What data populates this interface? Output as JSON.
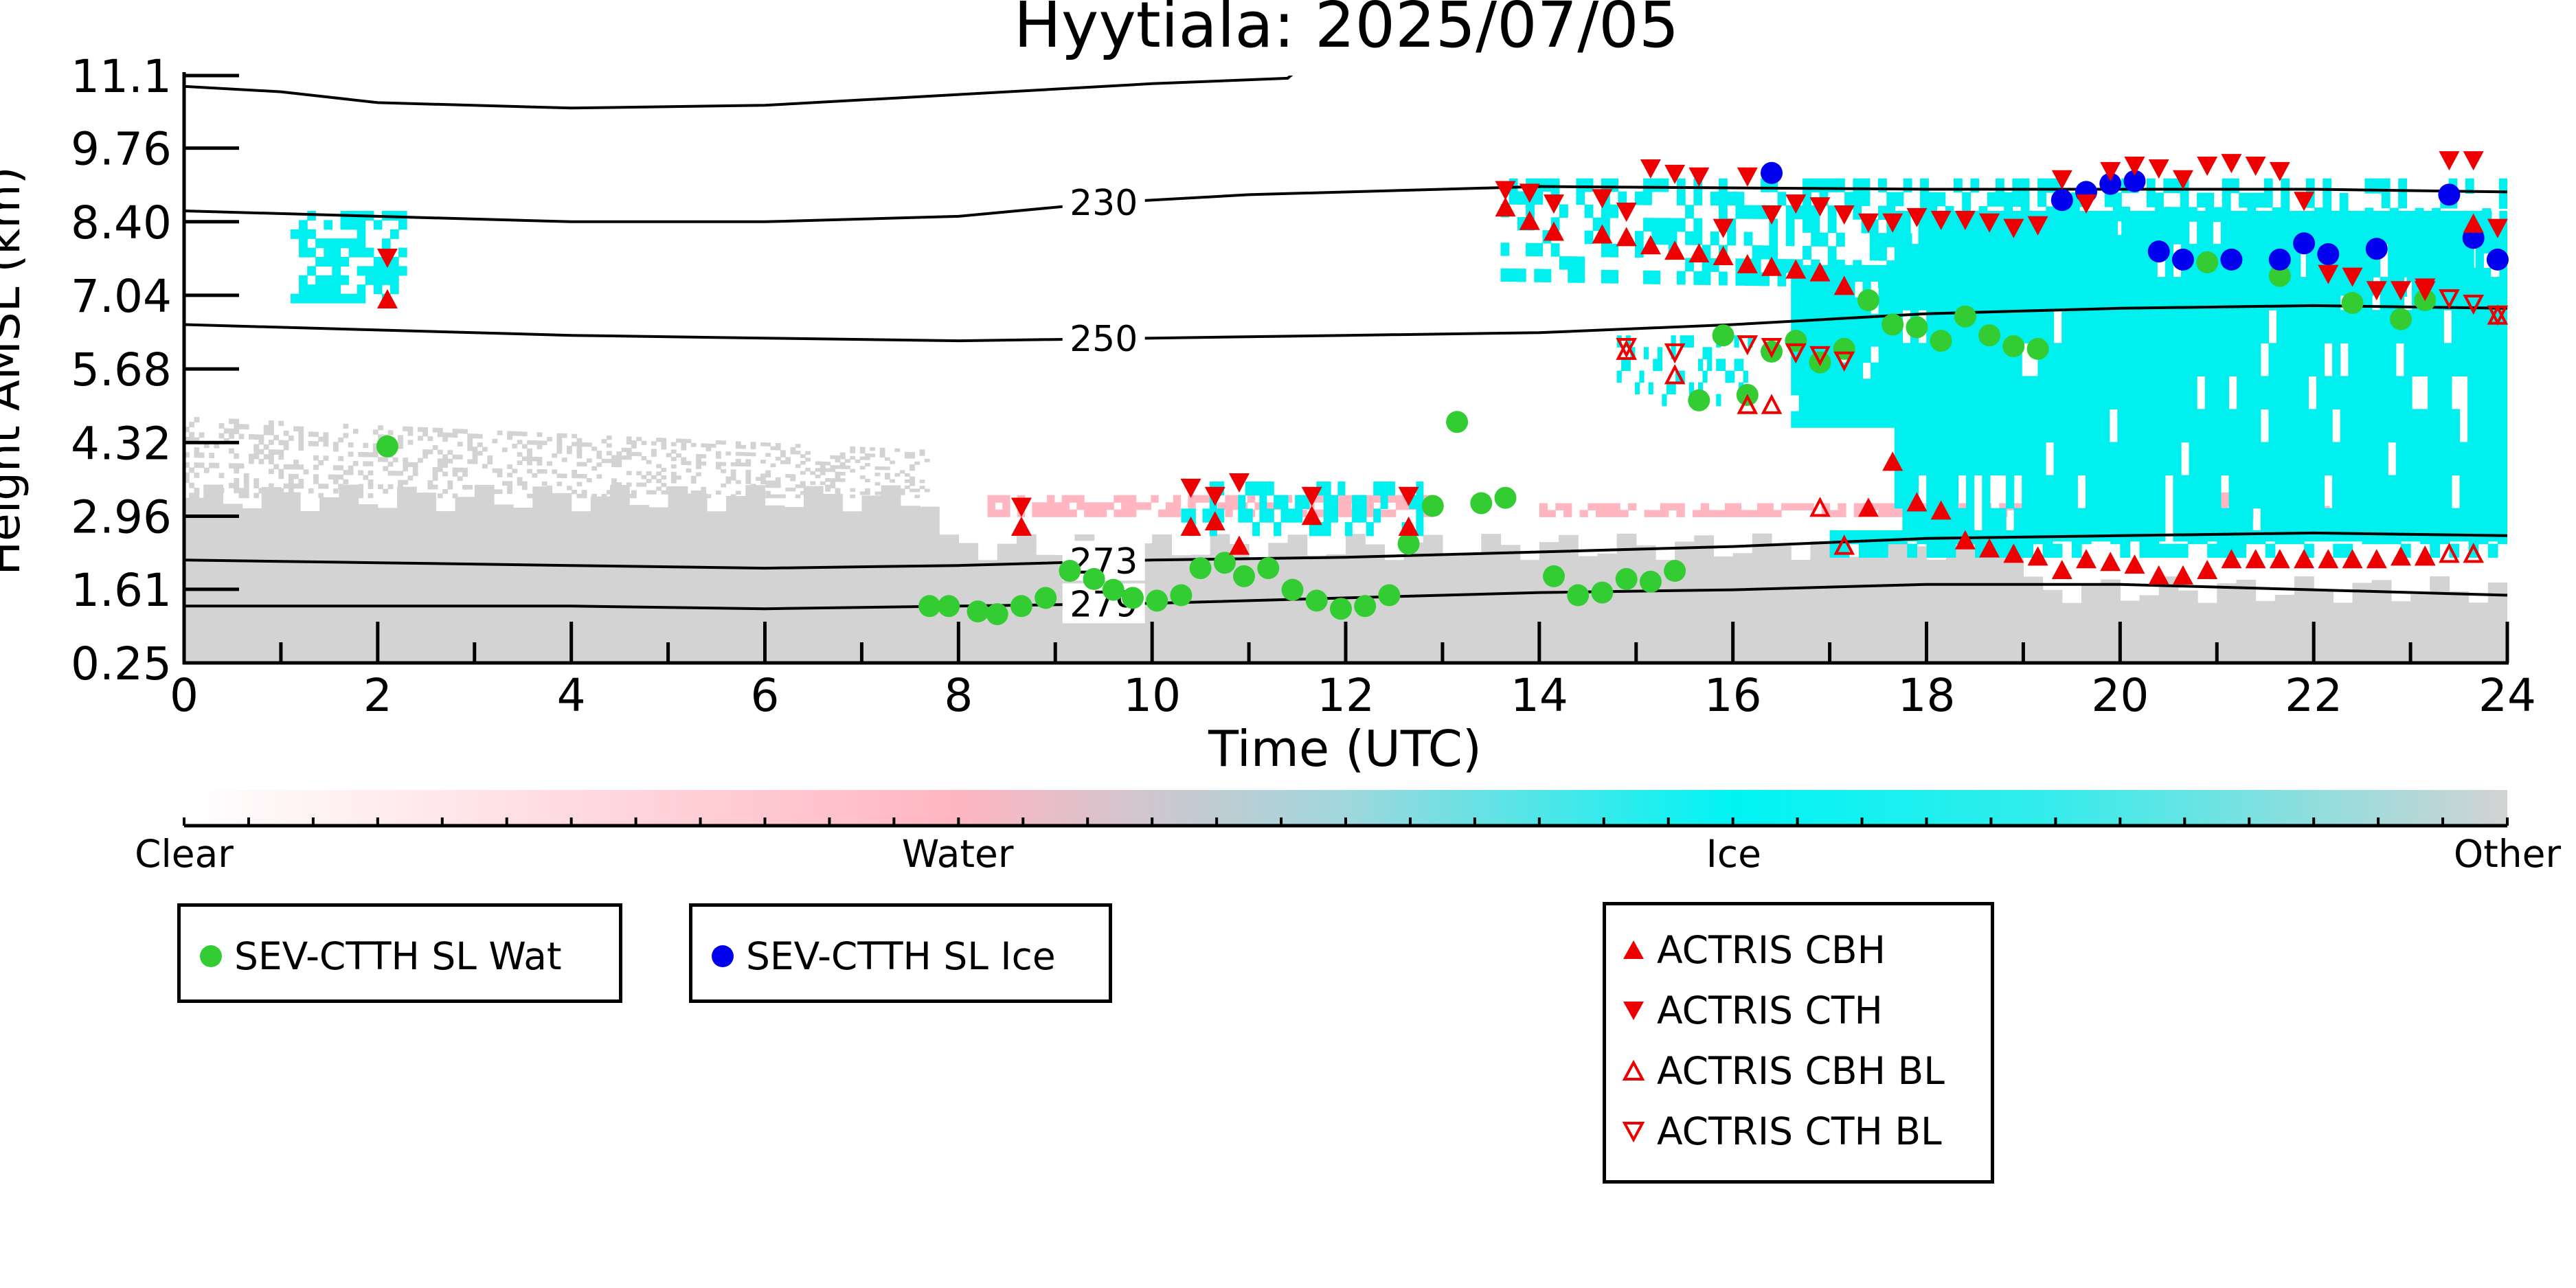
{
  "chart_data": {
    "type": "scatter",
    "title": "Hyytiala: 2025/07/05",
    "xlabel": "Time (UTC)",
    "ylabel": "Height AMSL (km)",
    "xlim": [
      0,
      24
    ],
    "ylim": [
      0.25,
      11.1
    ],
    "x_ticks": [
      0,
      2,
      4,
      6,
      8,
      10,
      12,
      14,
      16,
      18,
      20,
      22,
      24
    ],
    "x_tick_labels": [
      "0",
      "2",
      "4",
      "6",
      "8",
      "10",
      "12",
      "14",
      "16",
      "18",
      "20",
      "22",
      "24"
    ],
    "y_ticks": [
      0.25,
      1.61,
      2.96,
      4.32,
      5.68,
      7.04,
      8.4,
      9.76,
      11.1
    ],
    "y_tick_labels": [
      "0.25",
      "1.61",
      "2.96",
      "4.32",
      "5.68",
      "7.04",
      "8.40",
      "9.76",
      "11.1"
    ],
    "colorbar": {
      "labels": [
        "Clear",
        "Water",
        "Ice",
        "Other"
      ],
      "positions": [
        0,
        0.333,
        0.667,
        1.0
      ],
      "colors": [
        "#ffffff",
        "#ffb6c1",
        "#00ffff",
        "#d3d3d3"
      ]
    },
    "background_categories": {
      "Other": "#d3d3d3",
      "Water": "#ffb6c1",
      "Ice": "#00f0f0"
    },
    "contours": [
      {
        "label": "230",
        "label_x": 9.5,
        "points": [
          [
            0,
            8.6
          ],
          [
            2,
            8.5
          ],
          [
            4,
            8.4
          ],
          [
            6,
            8.4
          ],
          [
            8,
            8.5
          ],
          [
            9.5,
            8.75
          ],
          [
            11,
            8.9
          ],
          [
            13,
            9.0
          ],
          [
            14,
            9.05
          ],
          [
            18,
            9.0
          ],
          [
            22,
            9.0
          ],
          [
            24,
            8.95
          ]
        ]
      },
      {
        "label": "250",
        "label_x": 9.5,
        "points": [
          [
            0,
            6.5
          ],
          [
            2,
            6.4
          ],
          [
            4,
            6.3
          ],
          [
            6,
            6.25
          ],
          [
            8,
            6.2
          ],
          [
            10,
            6.25
          ],
          [
            12,
            6.3
          ],
          [
            14,
            6.35
          ],
          [
            16,
            6.5
          ],
          [
            18,
            6.7
          ],
          [
            20,
            6.8
          ],
          [
            22,
            6.85
          ],
          [
            24,
            6.8
          ]
        ]
      },
      {
        "label": "273",
        "label_x": 9.5,
        "points": [
          [
            0,
            2.15
          ],
          [
            2,
            2.1
          ],
          [
            4,
            2.05
          ],
          [
            6,
            2.0
          ],
          [
            8,
            2.05
          ],
          [
            10,
            2.15
          ],
          [
            12,
            2.2
          ],
          [
            14,
            2.3
          ],
          [
            16,
            2.4
          ],
          [
            18,
            2.55
          ],
          [
            20,
            2.6
          ],
          [
            22,
            2.65
          ],
          [
            24,
            2.6
          ]
        ]
      },
      {
        "label": "279",
        "label_x": 9.5,
        "points": [
          [
            0,
            1.3
          ],
          [
            2,
            1.3
          ],
          [
            4,
            1.3
          ],
          [
            6,
            1.25
          ],
          [
            8,
            1.3
          ],
          [
            10,
            1.35
          ],
          [
            12,
            1.45
          ],
          [
            14,
            1.55
          ],
          [
            16,
            1.6
          ],
          [
            18,
            1.7
          ],
          [
            20,
            1.7
          ],
          [
            22,
            1.6
          ],
          [
            24,
            1.5
          ]
        ]
      },
      {
        "label": "",
        "label_x": null,
        "points": [
          [
            0,
            10.9
          ],
          [
            1,
            10.8
          ],
          [
            2,
            10.6
          ],
          [
            4,
            10.5
          ],
          [
            6,
            10.55
          ],
          [
            8,
            10.75
          ],
          [
            10,
            10.95
          ],
          [
            11.4,
            11.05
          ],
          [
            11.5,
            11.2
          ]
        ]
      }
    ],
    "series": [
      {
        "name": "SEV-CTTH SL Wat",
        "color": "#33cc33",
        "marker": "circle",
        "points": [
          [
            2.1,
            4.25
          ],
          [
            7.7,
            1.3
          ],
          [
            7.9,
            1.3
          ],
          [
            8.2,
            1.2
          ],
          [
            8.4,
            1.15
          ],
          [
            8.65,
            1.3
          ],
          [
            8.9,
            1.45
          ],
          [
            9.15,
            1.95
          ],
          [
            9.4,
            1.8
          ],
          [
            9.6,
            1.6
          ],
          [
            9.8,
            1.45
          ],
          [
            10.05,
            1.4
          ],
          [
            10.3,
            1.5
          ],
          [
            10.5,
            2.0
          ],
          [
            10.75,
            2.1
          ],
          [
            10.95,
            1.85
          ],
          [
            11.2,
            2.0
          ],
          [
            11.45,
            1.6
          ],
          [
            11.7,
            1.4
          ],
          [
            11.95,
            1.25
          ],
          [
            12.2,
            1.3
          ],
          [
            12.45,
            1.5
          ],
          [
            12.65,
            2.45
          ],
          [
            12.9,
            3.15
          ],
          [
            13.15,
            4.7
          ],
          [
            13.4,
            3.2
          ],
          [
            13.65,
            3.3
          ],
          [
            14.15,
            1.85
          ],
          [
            14.4,
            1.5
          ],
          [
            14.65,
            1.55
          ],
          [
            14.9,
            1.8
          ],
          [
            15.15,
            1.75
          ],
          [
            15.4,
            1.95
          ],
          [
            15.65,
            5.1
          ],
          [
            15.9,
            6.3
          ],
          [
            16.15,
            5.2
          ],
          [
            16.4,
            6.0
          ],
          [
            16.65,
            6.2
          ],
          [
            16.9,
            5.8
          ],
          [
            17.15,
            6.05
          ],
          [
            17.4,
            6.95
          ],
          [
            17.65,
            6.5
          ],
          [
            17.9,
            6.45
          ],
          [
            18.15,
            6.2
          ],
          [
            18.4,
            6.65
          ],
          [
            18.65,
            6.3
          ],
          [
            18.9,
            6.1
          ],
          [
            19.15,
            6.05
          ],
          [
            20.9,
            7.65
          ],
          [
            21.65,
            7.4
          ],
          [
            22.4,
            6.9
          ],
          [
            22.9,
            6.6
          ],
          [
            23.15,
            6.95
          ]
        ]
      },
      {
        "name": "SEV-CTTH SL Ice",
        "color": "#0000ee",
        "marker": "circle",
        "points": [
          [
            16.4,
            9.3
          ],
          [
            19.4,
            8.8
          ],
          [
            19.65,
            8.95
          ],
          [
            19.9,
            9.1
          ],
          [
            20.15,
            9.15
          ],
          [
            20.4,
            7.85
          ],
          [
            20.65,
            7.7
          ],
          [
            21.15,
            7.7
          ],
          [
            21.65,
            7.7
          ],
          [
            21.9,
            8.0
          ],
          [
            22.15,
            7.8
          ],
          [
            22.65,
            7.9
          ],
          [
            23.4,
            8.9
          ],
          [
            23.65,
            8.1
          ],
          [
            23.9,
            7.7
          ]
        ]
      },
      {
        "name": "ACTRIS CBH",
        "color": "#ee0000",
        "marker": "triangle-up-filled",
        "points": [
          [
            2.1,
            6.95
          ],
          [
            8.65,
            2.75
          ],
          [
            10.4,
            2.75
          ],
          [
            10.65,
            2.85
          ],
          [
            10.9,
            2.4
          ],
          [
            11.65,
            2.95
          ],
          [
            12.65,
            2.75
          ],
          [
            13.65,
            8.65
          ],
          [
            13.9,
            8.4
          ],
          [
            14.15,
            8.2
          ],
          [
            14.65,
            8.15
          ],
          [
            14.9,
            8.1
          ],
          [
            15.15,
            7.95
          ],
          [
            15.4,
            7.85
          ],
          [
            15.65,
            7.8
          ],
          [
            15.9,
            7.75
          ],
          [
            16.15,
            7.6
          ],
          [
            16.4,
            7.55
          ],
          [
            16.65,
            7.5
          ],
          [
            16.9,
            7.45
          ],
          [
            17.15,
            7.2
          ],
          [
            17.4,
            3.1
          ],
          [
            17.65,
            3.95
          ],
          [
            17.9,
            3.2
          ],
          [
            18.15,
            3.05
          ],
          [
            18.4,
            2.5
          ],
          [
            18.65,
            2.35
          ],
          [
            18.9,
            2.25
          ],
          [
            19.15,
            2.2
          ],
          [
            19.4,
            1.95
          ],
          [
            19.65,
            2.15
          ],
          [
            19.9,
            2.1
          ],
          [
            20.15,
            2.05
          ],
          [
            20.4,
            1.85
          ],
          [
            20.65,
            1.85
          ],
          [
            20.9,
            1.95
          ],
          [
            21.15,
            2.15
          ],
          [
            21.4,
            2.15
          ],
          [
            21.65,
            2.15
          ],
          [
            21.9,
            2.15
          ],
          [
            22.15,
            2.15
          ],
          [
            22.4,
            2.15
          ],
          [
            22.65,
            2.15
          ],
          [
            22.9,
            2.2
          ],
          [
            23.15,
            2.2
          ],
          [
            23.65,
            8.35
          ]
        ]
      },
      {
        "name": "ACTRIS CTH",
        "color": "#ee0000",
        "marker": "triangle-down-filled",
        "points": [
          [
            2.1,
            7.75
          ],
          [
            8.65,
            3.15
          ],
          [
            10.4,
            3.5
          ],
          [
            10.65,
            3.35
          ],
          [
            10.9,
            3.6
          ],
          [
            11.65,
            3.35
          ],
          [
            12.65,
            3.35
          ],
          [
            13.65,
            9.0
          ],
          [
            13.9,
            8.95
          ],
          [
            14.15,
            8.75
          ],
          [
            14.65,
            8.85
          ],
          [
            14.9,
            8.6
          ],
          [
            15.15,
            9.4
          ],
          [
            15.4,
            9.3
          ],
          [
            15.65,
            9.25
          ],
          [
            15.9,
            8.3
          ],
          [
            16.15,
            9.25
          ],
          [
            16.4,
            8.55
          ],
          [
            16.65,
            8.75
          ],
          [
            16.9,
            8.7
          ],
          [
            17.15,
            8.55
          ],
          [
            17.4,
            8.4
          ],
          [
            17.65,
            8.4
          ],
          [
            17.9,
            8.5
          ],
          [
            18.15,
            8.45
          ],
          [
            18.4,
            8.45
          ],
          [
            18.65,
            8.4
          ],
          [
            18.9,
            8.3
          ],
          [
            19.15,
            8.35
          ],
          [
            19.4,
            9.2
          ],
          [
            19.65,
            8.75
          ],
          [
            19.9,
            9.35
          ],
          [
            20.15,
            9.45
          ],
          [
            20.4,
            9.4
          ],
          [
            20.65,
            9.2
          ],
          [
            20.9,
            9.45
          ],
          [
            21.15,
            9.5
          ],
          [
            21.4,
            9.45
          ],
          [
            21.65,
            9.35
          ],
          [
            21.9,
            8.8
          ],
          [
            22.15,
            7.45
          ],
          [
            22.4,
            7.4
          ],
          [
            22.65,
            7.15
          ],
          [
            22.9,
            7.15
          ],
          [
            23.15,
            7.2
          ],
          [
            23.4,
            9.55
          ],
          [
            23.65,
            9.55
          ],
          [
            23.9,
            8.3
          ]
        ]
      },
      {
        "name": "ACTRIS CBH BL",
        "color": "#ee0000",
        "marker": "triangle-up-open",
        "points": [
          [
            14.9,
            6.0
          ],
          [
            15.4,
            5.55
          ],
          [
            16.15,
            5.0
          ],
          [
            16.4,
            5.0
          ],
          [
            16.9,
            3.1
          ],
          [
            17.15,
            2.4
          ],
          [
            23.15,
            2.2
          ],
          [
            23.4,
            2.25
          ],
          [
            23.65,
            2.25
          ],
          [
            23.9,
            6.65
          ]
        ]
      },
      {
        "name": "ACTRIS CTH BL",
        "color": "#ee0000",
        "marker": "triangle-down-open",
        "points": [
          [
            14.9,
            6.1
          ],
          [
            15.4,
            6.0
          ],
          [
            16.15,
            6.15
          ],
          [
            16.4,
            6.1
          ],
          [
            16.65,
            6.0
          ],
          [
            16.9,
            5.95
          ],
          [
            17.15,
            5.85
          ],
          [
            23.15,
            7.15
          ],
          [
            23.4,
            7.0
          ],
          [
            23.65,
            6.9
          ],
          [
            23.9,
            6.7
          ]
        ]
      }
    ],
    "legends": [
      {
        "entries": [
          "SEV-CTTH SL Wat"
        ],
        "placement": "below-left"
      },
      {
        "entries": [
          "SEV-CTTH SL Ice"
        ],
        "placement": "below-center-left"
      },
      {
        "entries": [
          "ACTRIS CBH",
          "ACTRIS CTH",
          "ACTRIS CBH BL",
          "ACTRIS CTH BL"
        ],
        "placement": "below-center-right"
      }
    ]
  }
}
